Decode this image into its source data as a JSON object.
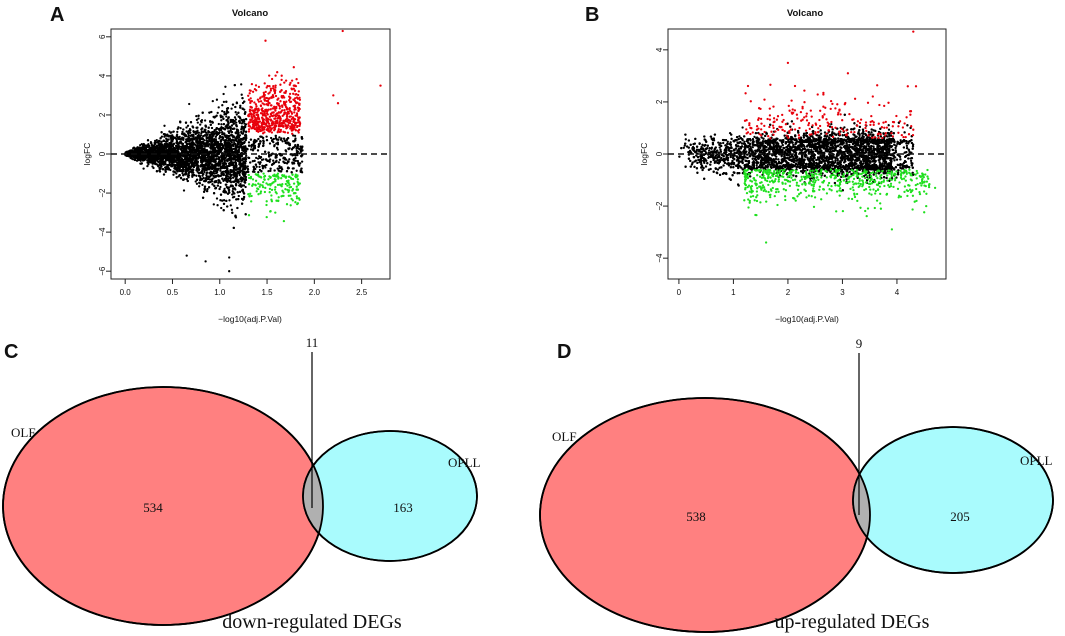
{
  "chart_data": [
    {
      "id": "A",
      "type": "scatter",
      "panel_label": "A",
      "title": "Volcano",
      "xlabel": "−log10(adj.P.Val)",
      "ylabel": "logFC",
      "xlim": [
        -0.15,
        2.8
      ],
      "ylim": [
        -6.4,
        6.4
      ],
      "xticks": [
        0.0,
        0.5,
        1.0,
        1.5,
        2.0,
        2.5
      ],
      "xtick_labels": [
        "0.0",
        "0.5",
        "1.0",
        "1.5",
        "2.0",
        "2.5"
      ],
      "yticks": [
        -6,
        -4,
        -2,
        0,
        2,
        4,
        6
      ],
      "ytick_labels": [
        "−6",
        "−4",
        "−2",
        "0",
        "2",
        "4",
        "6"
      ],
      "reference_line_y": 0,
      "significance_x": 1.3,
      "colors": {
        "not_significant": "#000000",
        "up": "#e8000b",
        "down": "#1fe01f"
      },
      "series_estimated": [
        {
          "name": "not significant",
          "approx_count": 5000,
          "x_range": [
            0,
            2.0
          ],
          "y_range": [
            -6.0,
            4.5
          ]
        },
        {
          "name": "up-regulated",
          "approx_count": 545,
          "x_range": [
            1.3,
            1.85
          ],
          "y_range": [
            1.0,
            5.8
          ]
        },
        {
          "name": "down-regulated",
          "approx_count": 174,
          "x_range": [
            1.3,
            1.85
          ],
          "y_range": [
            -4.0,
            -1.0
          ]
        }
      ],
      "notable_points": [
        {
          "x": 2.3,
          "y": 6.3,
          "class": "up"
        },
        {
          "x": 2.7,
          "y": 3.5,
          "class": "up"
        },
        {
          "x": 2.2,
          "y": 3.0,
          "class": "up"
        },
        {
          "x": 2.25,
          "y": 2.6,
          "class": "up"
        },
        {
          "x": 0.65,
          "y": -5.2,
          "class": "ns"
        },
        {
          "x": 0.85,
          "y": -5.5,
          "class": "ns"
        },
        {
          "x": 1.1,
          "y": -6.0,
          "class": "ns"
        },
        {
          "x": 1.1,
          "y": -5.3,
          "class": "ns"
        }
      ]
    },
    {
      "id": "B",
      "type": "scatter",
      "panel_label": "B",
      "title": "Volcano",
      "xlabel": "−log10(adj.P.Val)",
      "ylabel": "logFC",
      "xlim": [
        -0.2,
        4.9
      ],
      "ylim": [
        -4.8,
        4.8
      ],
      "xticks": [
        0,
        1,
        2,
        3,
        4
      ],
      "xtick_labels": [
        "0",
        "1",
        "2",
        "3",
        "4"
      ],
      "yticks": [
        -4,
        -2,
        0,
        2,
        4
      ],
      "ytick_labels": [
        "−4",
        "−2",
        "0",
        "2",
        "4"
      ],
      "reference_line_y": 0,
      "colors": {
        "not_significant": "#000000",
        "up": "#e8000b",
        "down": "#1fe01f"
      },
      "series_estimated": [
        {
          "name": "not significant",
          "approx_count": 5000,
          "x_range": [
            0,
            4.3
          ],
          "y_range": [
            -2.8,
            2.0
          ]
        },
        {
          "name": "up-regulated",
          "approx_count": 214,
          "x_range": [
            1.2,
            4.3
          ],
          "y_range": [
            0.6,
            3.5
          ]
        },
        {
          "name": "down-regulated",
          "approx_count": 547,
          "x_range": [
            1.2,
            4.7
          ],
          "y_range": [
            -3.4,
            -0.6
          ]
        }
      ],
      "notable_points": [
        {
          "x": 4.3,
          "y": 4.7,
          "class": "up"
        },
        {
          "x": 4.2,
          "y": 2.6,
          "class": "up"
        },
        {
          "x": 4.35,
          "y": 2.6,
          "class": "up"
        },
        {
          "x": 3.1,
          "y": 3.1,
          "class": "up"
        },
        {
          "x": 2.0,
          "y": 3.5,
          "class": "up"
        },
        {
          "x": 4.7,
          "y": -1.3,
          "class": "down"
        },
        {
          "x": 1.6,
          "y": -3.4,
          "class": "down"
        },
        {
          "x": 4.3,
          "y": -0.8,
          "class": "ns"
        }
      ]
    },
    {
      "id": "C",
      "type": "venn",
      "panel_label": "C",
      "caption": "down-regulated DEGs",
      "sets": [
        {
          "name": "OLF",
          "only_count": "534",
          "color": "#ff8080"
        },
        {
          "name": "OPLL",
          "only_count": "163",
          "color": "#a9fbfd"
        }
      ],
      "intersection_count": "11",
      "intersection_color": "#b0b0b0"
    },
    {
      "id": "D",
      "type": "venn",
      "panel_label": "D",
      "caption": "up-regulated DEGs",
      "sets": [
        {
          "name": "OLF",
          "only_count": "538",
          "color": "#ff8080"
        },
        {
          "name": "OPLL",
          "only_count": "205",
          "color": "#a9fbfd"
        }
      ],
      "intersection_count": "9",
      "intersection_color": "#b0b0b0"
    }
  ]
}
